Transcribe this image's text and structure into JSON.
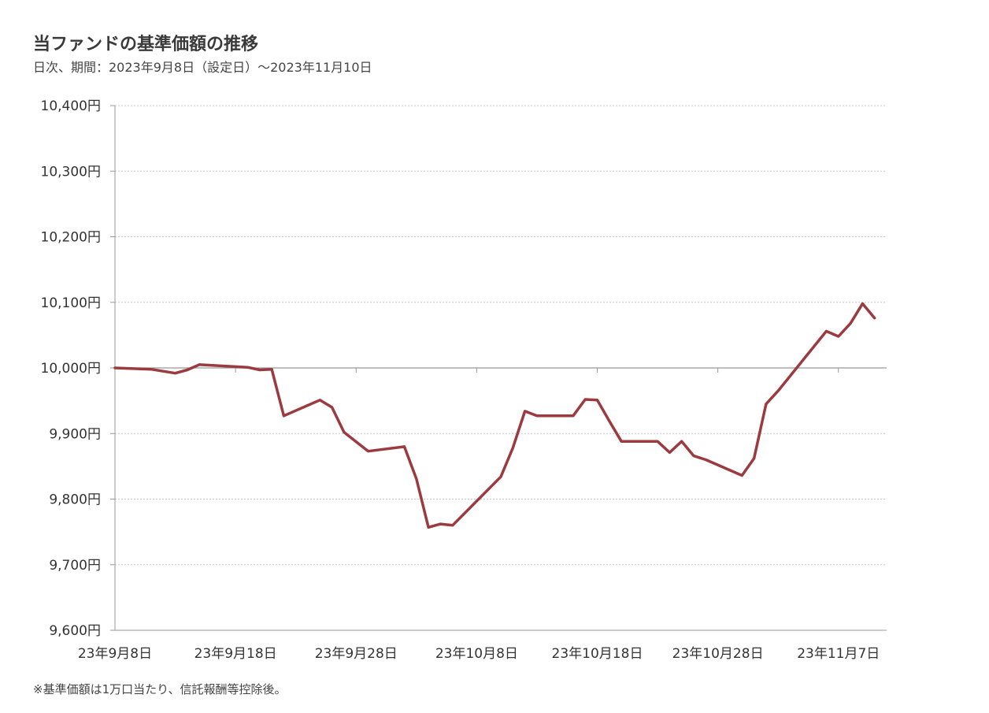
{
  "header": {
    "title": "当ファンドの基準価額の推移",
    "subtitle": "日次、期間：2023年9月8日（設定日）～2023年11月10日"
  },
  "footnote": "※基準価額は1万口当たり、信託報酬等控除後。",
  "colors": {
    "line": "#9b3b40",
    "grid": "#c8c8c8",
    "axis": "#999999",
    "baseline": "#999999"
  },
  "chart_data": {
    "type": "line",
    "title": "当ファンドの基準価額の推移",
    "x_tick_labels": [
      "23年9月8日",
      "23年9月18日",
      "23年9月28日",
      "23年10月8日",
      "23年10月18日",
      "23年10月28日",
      "23年11月7日"
    ],
    "x_ticks": [
      "2023-09-08",
      "2023-09-18",
      "2023-09-28",
      "2023-10-08",
      "2023-10-18",
      "2023-10-28",
      "2023-11-07"
    ],
    "xlim": [
      "2023-09-08",
      "2023-11-11"
    ],
    "y_tick_labels": [
      "9,600円",
      "9,700円",
      "9,800円",
      "9,900円",
      "10,000円",
      "10,100円",
      "10,200円",
      "10,300円",
      "10,400円"
    ],
    "y_ticks": [
      9600,
      9700,
      9800,
      9900,
      10000,
      10100,
      10200,
      10300,
      10400
    ],
    "ylim": [
      9600,
      10400
    ],
    "grid": true,
    "baseline": 10000,
    "series": [
      {
        "points": [
          [
            "2023-09-08",
            10000
          ],
          [
            "2023-09-11",
            9998
          ],
          [
            "2023-09-13",
            9992
          ],
          [
            "2023-09-14",
            9997
          ],
          [
            "2023-09-15",
            10005
          ],
          [
            "2023-09-19",
            10001
          ],
          [
            "2023-09-20",
            9997
          ],
          [
            "2023-09-21",
            9998
          ],
          [
            "2023-09-22",
            9927
          ],
          [
            "2023-09-25",
            9951
          ],
          [
            "2023-09-26",
            9940
          ],
          [
            "2023-09-27",
            9902
          ],
          [
            "2023-09-29",
            9873
          ],
          [
            "2023-10-02",
            9880
          ],
          [
            "2023-10-03",
            9831
          ],
          [
            "2023-10-04",
            9757
          ],
          [
            "2023-10-05",
            9762
          ],
          [
            "2023-10-06",
            9760
          ],
          [
            "2023-10-10",
            9834
          ],
          [
            "2023-10-11",
            9878
          ],
          [
            "2023-10-12",
            9934
          ],
          [
            "2023-10-13",
            9927
          ],
          [
            "2023-10-16",
            9927
          ],
          [
            "2023-10-17",
            9952
          ],
          [
            "2023-10-18",
            9951
          ],
          [
            "2023-10-19",
            9919
          ],
          [
            "2023-10-20",
            9888
          ],
          [
            "2023-10-23",
            9888
          ],
          [
            "2023-10-24",
            9871
          ],
          [
            "2023-10-25",
            9888
          ],
          [
            "2023-10-26",
            9866
          ],
          [
            "2023-10-27",
            9860
          ],
          [
            "2023-10-30",
            9836
          ],
          [
            "2023-10-31",
            9862
          ],
          [
            "2023-11-01",
            9945
          ],
          [
            "2023-11-02",
            9965
          ],
          [
            "2023-11-06",
            10056
          ],
          [
            "2023-11-07",
            10048
          ],
          [
            "2023-11-08",
            10068
          ],
          [
            "2023-11-09",
            10098
          ],
          [
            "2023-11-10",
            10076
          ]
        ]
      }
    ]
  }
}
